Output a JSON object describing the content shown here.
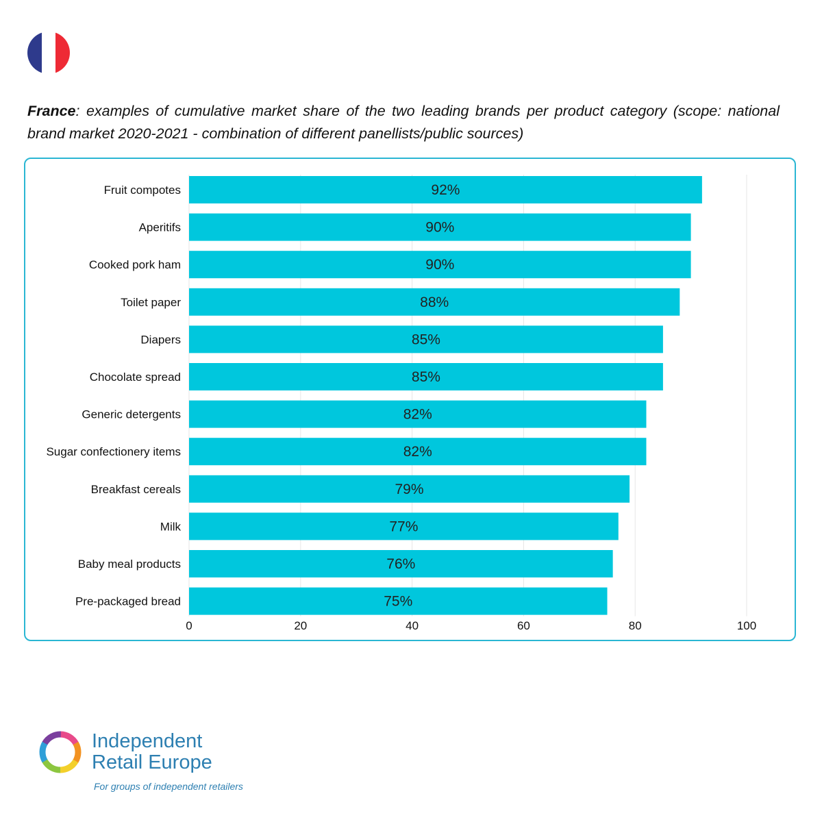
{
  "header": {
    "title_country": "France",
    "title_rest": ": examples of cumulative market share of the two leading brands per product category (scope: national brand market 2020-2021 - combination of different panellists/public sources)"
  },
  "colors": {
    "bar": "#00c7dd",
    "frame_border": "#2ab6d3",
    "brand_text": "#2d7fb1",
    "flag_blue": "#2e3a8c",
    "flag_white": "#ffffff",
    "flag_red": "#ee2a35"
  },
  "icons": {
    "flag": "france-flag-icon",
    "logo": "colorful-ring-logo-icon"
  },
  "chart_data": {
    "type": "bar",
    "orientation": "horizontal",
    "categories": [
      "Fruit compotes",
      "Aperitifs",
      "Cooked pork ham",
      "Toilet paper",
      "Diapers",
      "Chocolate spread",
      "Generic detergents",
      "Sugar confectionery items",
      "Breakfast cereals",
      "Milk",
      "Baby meal products",
      "Pre-packaged bread"
    ],
    "values": [
      92,
      90,
      90,
      88,
      85,
      85,
      82,
      82,
      79,
      77,
      76,
      75
    ],
    "data_labels": [
      "92%",
      "90%",
      "90%",
      "88%",
      "85%",
      "85%",
      "82%",
      "82%",
      "79%",
      "77%",
      "76%",
      "75%"
    ],
    "xlim": [
      0,
      100
    ],
    "xticks": [
      "0",
      "20",
      "40",
      "60",
      "80",
      "100"
    ],
    "grid": true,
    "legend": "none"
  },
  "footer": {
    "brand_name": "Independent\nRetail Europe",
    "tagline": "For groups of independent retailers"
  }
}
